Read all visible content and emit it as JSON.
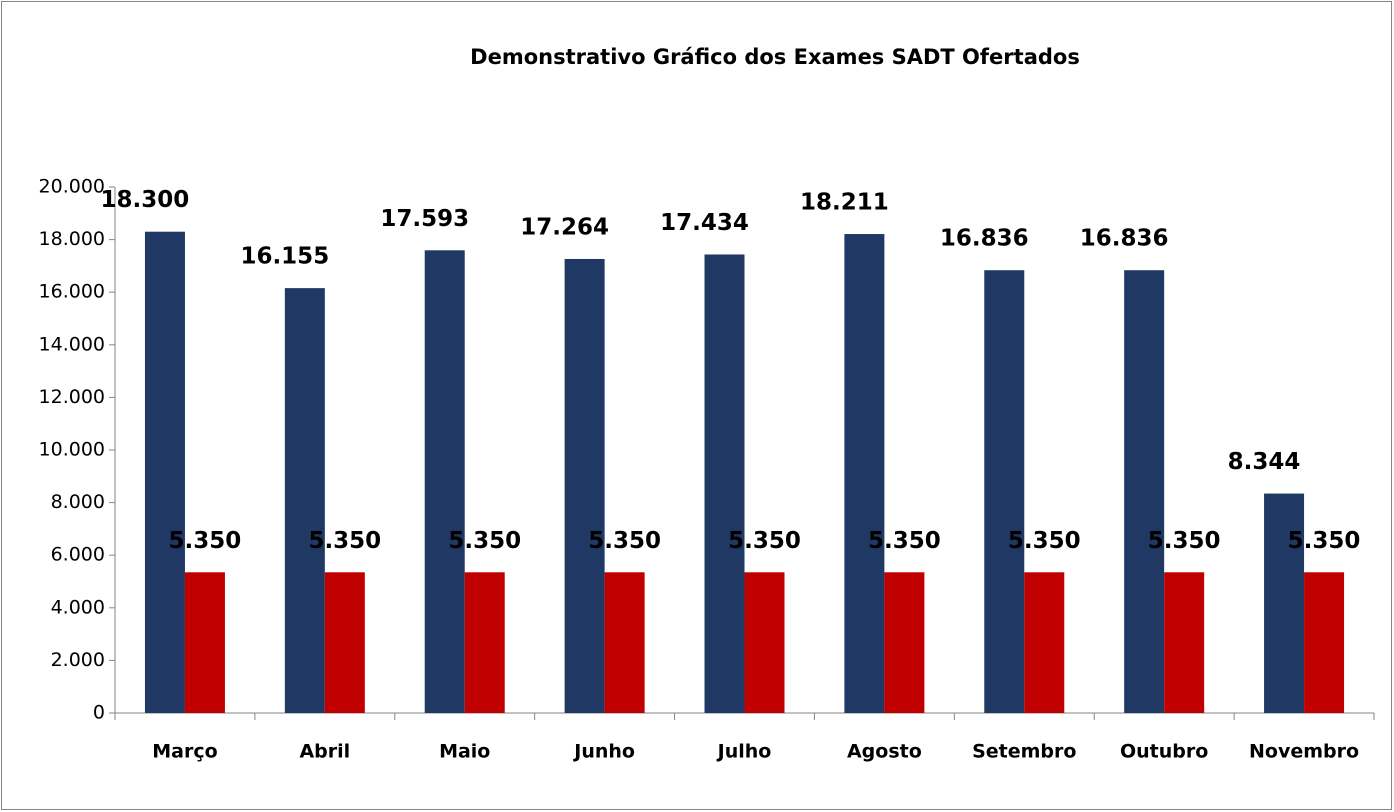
{
  "chart_data": {
    "type": "bar",
    "title": "Demonstrativo Gráfico dos Exames SADT Ofertados",
    "categories": [
      "Março",
      "Abril",
      "Maio",
      "Junho",
      "Julho",
      "Agosto",
      "Setembro",
      "Outubro",
      "Novembro"
    ],
    "series": [
      {
        "color": "#1f3864",
        "values": [
          18300,
          16155,
          17593,
          17264,
          17434,
          18211,
          16836,
          16836,
          8344
        ],
        "value_labels": [
          "18.300",
          "16.155",
          "17.593",
          "17.264",
          "17.434",
          "18.211",
          "16.836",
          "16.836",
          "8.344"
        ]
      },
      {
        "color": "#c00000",
        "values": [
          5350,
          5350,
          5350,
          5350,
          5350,
          5350,
          5350,
          5350,
          5350
        ],
        "value_labels": [
          "5.350",
          "5.350",
          "5.350",
          "5.350",
          "5.350",
          "5.350",
          "5.350",
          "5.350",
          "5.350"
        ]
      }
    ],
    "ylim": [
      0,
      20000
    ],
    "yticks": [
      0,
      {
        "value": 2000,
        "label": "2.000"
      },
      {
        "value": 4000,
        "label": "4.000"
      },
      {
        "value": 6000,
        "label": "6.000"
      },
      {
        "value": 8000,
        "label": "8.000"
      },
      {
        "value": 10000,
        "label": "10.000"
      },
      {
        "value": 12000,
        "label": "12.000"
      },
      {
        "value": 14000,
        "label": "14.000"
      },
      {
        "value": 16000,
        "label": "16.000"
      },
      {
        "value": 18000,
        "label": "18.000"
      },
      {
        "value": 20000,
        "label": "20.000"
      }
    ],
    "grid": false
  }
}
